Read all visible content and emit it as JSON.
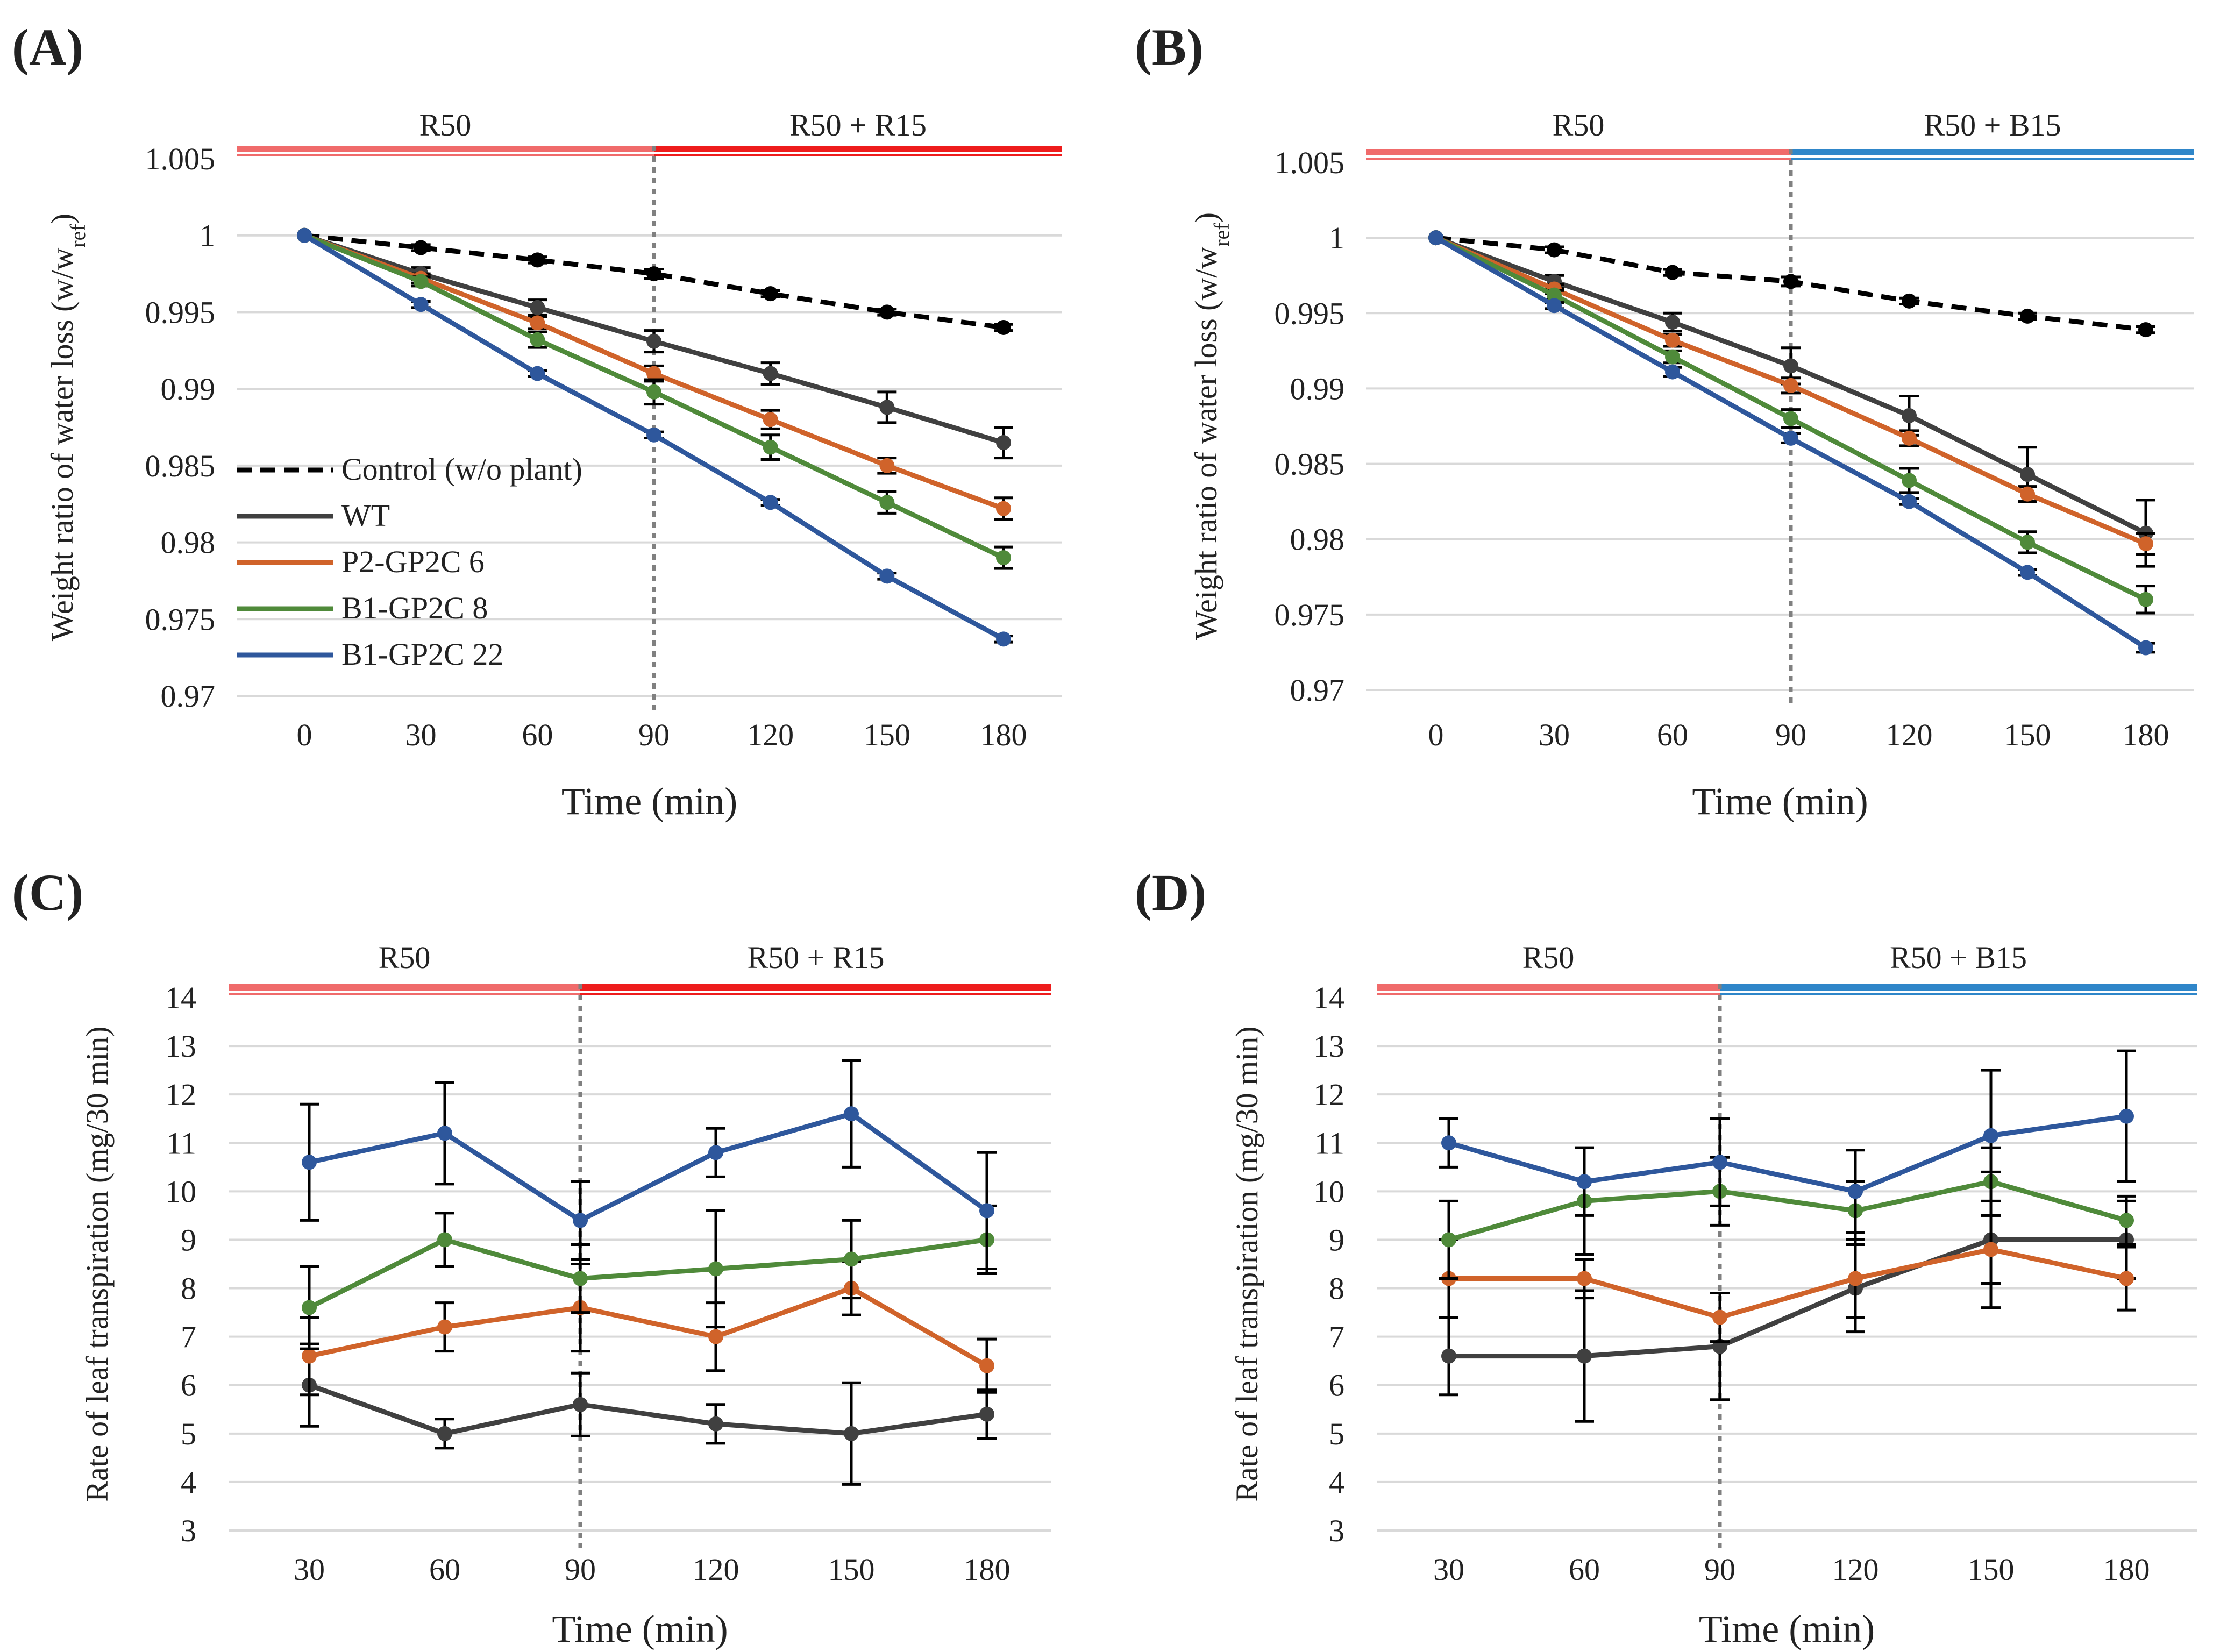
{
  "chart_data": [
    {
      "panel": "(A)",
      "type": "line",
      "ylabel_main": "Weight ratio of water loss (w/w",
      "ylabel_sub": "ref",
      "ylabel_close": ")",
      "xlabel": "Time (min)",
      "ylim": [
        0.97,
        1.005
      ],
      "yticks": [
        "1.005",
        "1",
        "0.995",
        "0.99",
        "0.985",
        "0.98",
        "0.975",
        "0.97"
      ],
      "x": [
        0,
        30,
        60,
        90,
        120,
        150,
        180
      ],
      "xticks": [
        "0",
        "30",
        "60",
        "90",
        "120",
        "150",
        "180"
      ],
      "periods": [
        {
          "label": "R50",
          "color": "#f06b6b"
        },
        {
          "label": "R50 + R15",
          "color": "#ee1c1c"
        }
      ],
      "divider_x": 90,
      "series": [
        {
          "name": "Control (w/o plant)",
          "color": "#000000",
          "dashed": true,
          "values": [
            1.0,
            0.9992,
            0.9984,
            0.9975,
            0.9962,
            0.995,
            0.994
          ],
          "errors": [
            0,
            0.0002,
            0.0002,
            0.0003,
            0.0002,
            0.0002,
            0.0002
          ]
        },
        {
          "name": "WT",
          "color": "#404040",
          "dashed": false,
          "values": [
            1.0,
            0.9975,
            0.9953,
            0.9931,
            0.991,
            0.9888,
            0.9865
          ],
          "errors": [
            0,
            0.0004,
            0.0005,
            0.0007,
            0.0007,
            0.001,
            0.001
          ]
        },
        {
          "name": "P2-GP2C 6",
          "color": "#d0632a",
          "dashed": false,
          "values": [
            1.0,
            0.9972,
            0.9943,
            0.991,
            0.988,
            0.985,
            0.9822
          ],
          "errors": [
            0,
            0.0003,
            0.0004,
            0.0005,
            0.0006,
            0.0005,
            0.0007
          ]
        },
        {
          "name": "B1-GP2C 8",
          "color": "#4f8a3a",
          "dashed": false,
          "values": [
            1.0,
            0.997,
            0.9932,
            0.9898,
            0.9862,
            0.9826,
            0.979
          ],
          "errors": [
            0,
            0.0003,
            0.0005,
            0.0008,
            0.0008,
            0.0007,
            0.0007
          ]
        },
        {
          "name": "B1-GP2C 22",
          "color": "#2e579c",
          "dashed": false,
          "values": [
            1.0,
            0.9955,
            0.991,
            0.987,
            0.9826,
            0.9778,
            0.9737
          ],
          "errors": [
            0,
            0.0002,
            0.0002,
            0.0002,
            0.0002,
            0.0002,
            0.0002
          ]
        }
      ],
      "legend": {
        "placement": "left-middle"
      }
    },
    {
      "panel": "(B)",
      "type": "line",
      "ylabel_main": "Weight ratio of water loss (w/w",
      "ylabel_sub": "ref",
      "ylabel_close": ")",
      "xlabel": "Time (min)",
      "ylim": [
        0.97,
        1.005
      ],
      "yticks": [
        "1.005",
        "1",
        "0.995",
        "0.99",
        "0.985",
        "0.98",
        "0.975",
        "0.97"
      ],
      "x": [
        0,
        30,
        60,
        90,
        120,
        150,
        180
      ],
      "xticks": [
        "0",
        "30",
        "60",
        "90",
        "120",
        "150",
        "180"
      ],
      "periods": [
        {
          "label": "R50",
          "color": "#f06b6b"
        },
        {
          "label": "R50 + B15",
          "color": "#2f86c9"
        }
      ],
      "divider_x": 90,
      "series": [
        {
          "name": "Control (w/o plant)",
          "color": "#000000",
          "dashed": true,
          "values": [
            1.0,
            0.9992,
            0.9977,
            0.9971,
            0.9958,
            0.9948,
            0.9939
          ],
          "errors": [
            0,
            0.0002,
            0.0002,
            0.0003,
            0.0002,
            0.0002,
            0.0002
          ]
        },
        {
          "name": "WT",
          "color": "#404040",
          "dashed": false,
          "values": [
            1.0,
            0.9971,
            0.9944,
            0.9915,
            0.9882,
            0.9843,
            0.9804
          ],
          "errors": [
            0,
            0.0004,
            0.0006,
            0.0012,
            0.0013,
            0.0018,
            0.0022
          ]
        },
        {
          "name": "P2-GP2C 6",
          "color": "#d0632a",
          "dashed": false,
          "values": [
            1.0,
            0.9966,
            0.9932,
            0.9902,
            0.9867,
            0.983,
            0.9797
          ],
          "errors": [
            0,
            0.0003,
            0.0004,
            0.0005,
            0.0005,
            0.0005,
            0.0007
          ]
        },
        {
          "name": "B1-GP2C 8",
          "color": "#4f8a3a",
          "dashed": false,
          "values": [
            1.0,
            0.9962,
            0.9921,
            0.988,
            0.9839,
            0.9798,
            0.976
          ],
          "errors": [
            0,
            0.0003,
            0.0004,
            0.0006,
            0.0008,
            0.0007,
            0.0009
          ]
        },
        {
          "name": "B1-GP2C 22",
          "color": "#2e579c",
          "dashed": false,
          "values": [
            1.0,
            0.9955,
            0.9911,
            0.9867,
            0.9825,
            0.9778,
            0.9728
          ],
          "errors": [
            0,
            0.0002,
            0.0003,
            0.0003,
            0.0002,
            0.0002,
            0.0003
          ]
        }
      ]
    },
    {
      "panel": "(C)",
      "type": "line",
      "ylabel_main": "Rate of leaf transpiration (mg/30 min)",
      "xlabel": "Time (min)",
      "ylim": [
        3,
        14
      ],
      "yticks": [
        "14",
        "13",
        "12",
        "11",
        "10",
        "9",
        "8",
        "7",
        "6",
        "5",
        "4",
        "3"
      ],
      "x": [
        30,
        60,
        90,
        120,
        150,
        180
      ],
      "xticks": [
        "30",
        "60",
        "90",
        "120",
        "150",
        "180"
      ],
      "periods": [
        {
          "label": "R50",
          "color": "#f06b6b"
        },
        {
          "label": "R50 + R15",
          "color": "#ee1c1c"
        }
      ],
      "divider_x": 90,
      "series": [
        {
          "name": "WT",
          "color": "#404040",
          "values": [
            6.0,
            5.0,
            5.6,
            5.2,
            5.0,
            5.4
          ],
          "errors": [
            0.85,
            0.3,
            0.65,
            0.4,
            1.05,
            0.5
          ]
        },
        {
          "name": "P2-GP2C 6",
          "color": "#d0632a",
          "values": [
            6.6,
            7.2,
            7.6,
            7.0,
            8.0,
            6.4
          ],
          "errors": [
            0.8,
            0.5,
            0.9,
            0.7,
            0.55,
            0.55
          ]
        },
        {
          "name": "B1-GP2C 8",
          "color": "#4f8a3a",
          "values": [
            7.6,
            9.0,
            8.2,
            8.4,
            8.6,
            9.0
          ],
          "errors": [
            0.85,
            0.55,
            0.7,
            1.2,
            0.8,
            0.7
          ]
        },
        {
          "name": "B1-GP2C 22",
          "color": "#2e579c",
          "values": [
            10.6,
            11.2,
            9.4,
            10.8,
            11.6,
            9.6
          ],
          "errors": [
            1.2,
            1.05,
            0.8,
            0.5,
            1.1,
            1.2
          ]
        }
      ]
    },
    {
      "panel": "(D)",
      "type": "line",
      "ylabel_main": "Rate of leaf transpiration (mg/30 min)",
      "xlabel": "Time (min)",
      "ylim": [
        3,
        14
      ],
      "yticks": [
        "14",
        "13",
        "12",
        "11",
        "10",
        "9",
        "8",
        "7",
        "6",
        "5",
        "4",
        "3"
      ],
      "x": [
        30,
        60,
        90,
        120,
        150,
        180
      ],
      "xticks": [
        "30",
        "60",
        "90",
        "120",
        "150",
        "180"
      ],
      "periods": [
        {
          "label": "R50",
          "color": "#f06b6b"
        },
        {
          "label": "R50 + B15",
          "color": "#2f86c9"
        }
      ],
      "divider_x": 90,
      "series": [
        {
          "name": "WT",
          "color": "#404040",
          "values": [
            6.6,
            6.6,
            6.8,
            8.0,
            9.0,
            9.0
          ],
          "errors": [
            0.8,
            1.35,
            1.1,
            0.9,
            1.4,
            0.8
          ]
        },
        {
          "name": "P2-GP2C 6",
          "color": "#d0632a",
          "values": [
            8.2,
            8.2,
            7.4,
            8.2,
            8.8,
            8.2
          ],
          "errors": [
            0.8,
            0.4,
            0.5,
            0.8,
            0.7,
            0.65
          ]
        },
        {
          "name": "B1-GP2C 8",
          "color": "#4f8a3a",
          "values": [
            9.0,
            9.8,
            10.0,
            9.6,
            10.2,
            9.4
          ],
          "errors": [
            0.8,
            1.1,
            0.7,
            0.6,
            0.7,
            0.5
          ]
        },
        {
          "name": "B1-GP2C 22",
          "color": "#2e579c",
          "values": [
            11.0,
            10.2,
            10.6,
            10.0,
            11.15,
            11.55
          ],
          "errors": [
            0.5,
            0.7,
            0.9,
            0.85,
            1.35,
            1.35
          ]
        }
      ]
    }
  ]
}
